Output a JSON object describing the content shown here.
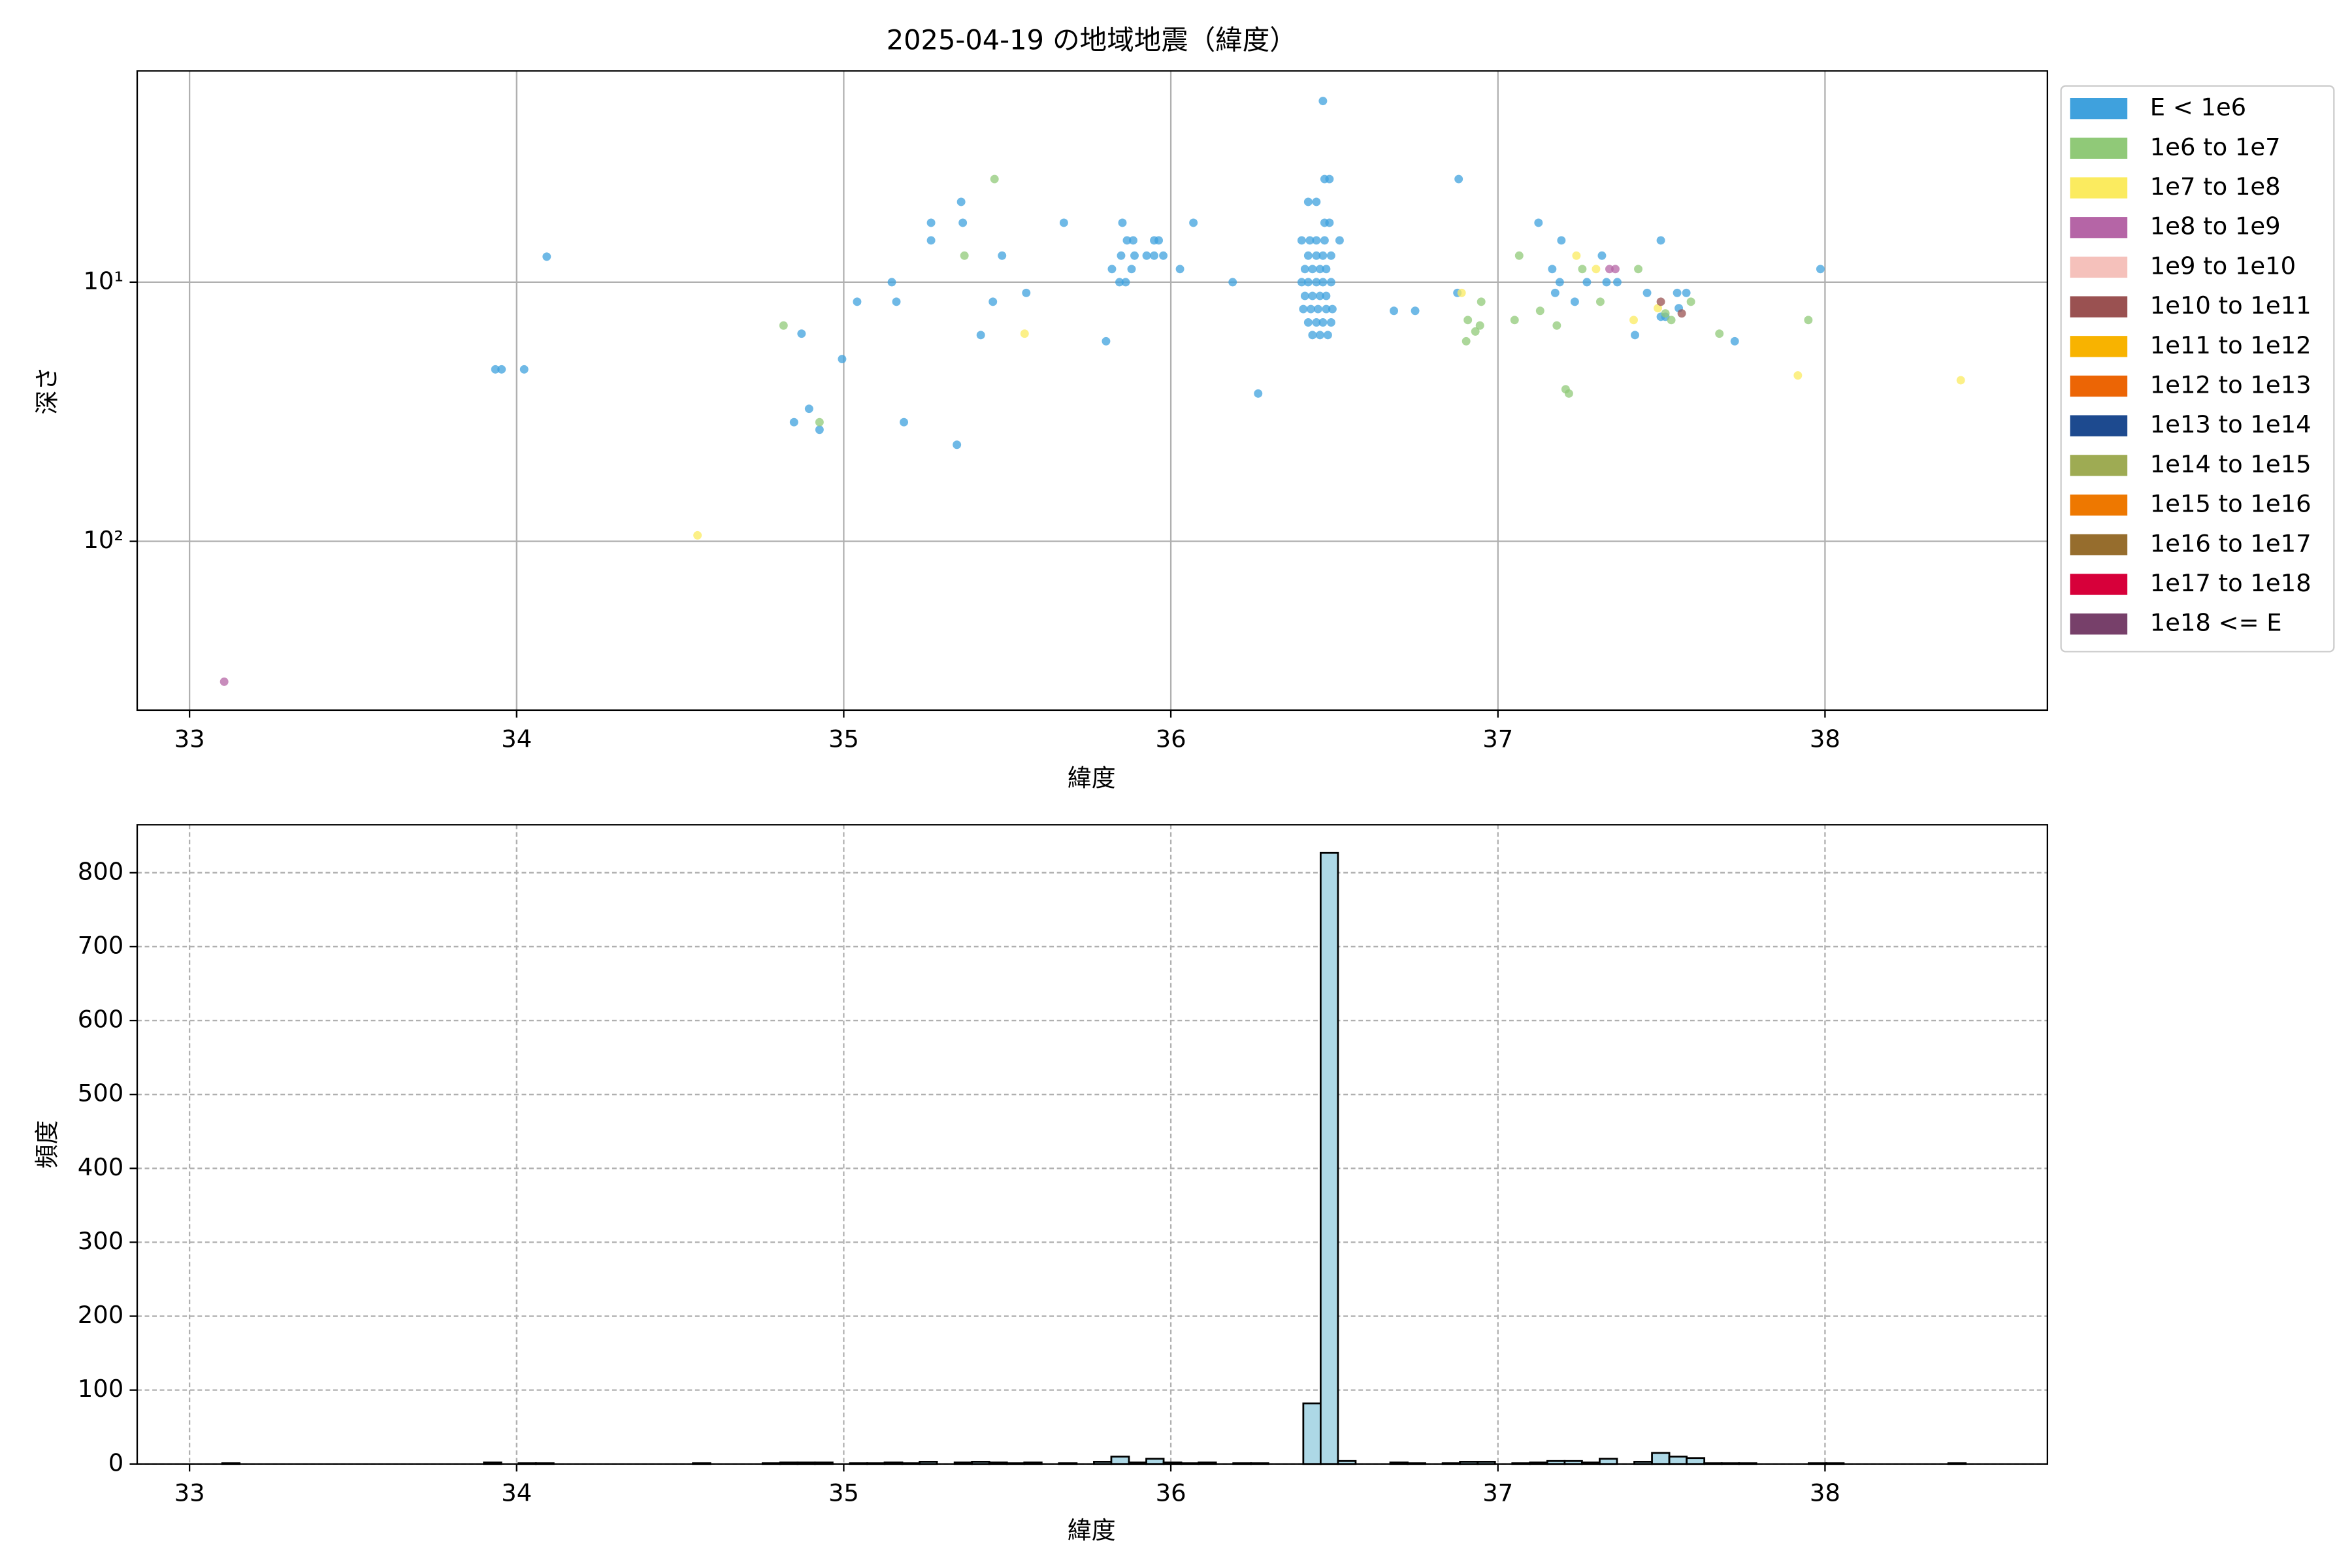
{
  "chart_data": [
    {
      "type": "scatter",
      "title": "2025-04-19 の地域地震（緯度）",
      "xlabel": "緯度",
      "ylabel": "深さ",
      "xlim": [
        32.84,
        38.68
      ],
      "ylim": [
        1.53,
        448
      ],
      "log_y": true,
      "invert_y": true,
      "grid": true,
      "legend": "outside-right",
      "xticks": [
        33,
        34,
        35,
        36,
        37,
        38
      ],
      "yticks": [
        {
          "value": 10,
          "label": "10¹"
        },
        {
          "value": 100,
          "label": "10²"
        }
      ],
      "series": [
        {
          "name": "E < 1e6",
          "color": "#3fa1dd",
          "x": [
            36.465,
            36.47,
            36.485,
            36.42,
            36.445,
            36.47,
            36.485,
            36.4,
            36.425,
            36.445,
            36.47,
            36.516,
            36.42,
            36.445,
            36.465,
            36.49,
            36.41,
            36.433,
            36.456,
            36.475,
            36.4,
            36.42,
            36.445,
            36.465,
            36.49,
            36.41,
            36.433,
            36.456,
            36.475,
            36.405,
            36.428,
            36.45,
            36.475,
            36.494,
            36.42,
            36.445,
            36.465,
            36.49,
            36.433,
            36.456,
            36.48,
            33.935,
            33.954,
            34.023,
            34.092,
            35.267,
            35.267,
            35.359,
            35.364,
            35.484,
            35.558,
            35.456,
            35.419,
            35.147,
            35.161,
            35.041,
            34.871,
            34.995,
            34.894,
            34.848,
            34.926,
            35.184,
            35.346,
            35.673,
            35.852,
            35.866,
            35.885,
            35.88,
            35.82,
            35.843,
            35.862,
            35.848,
            35.802,
            35.889,
            35.926,
            35.949,
            35.977,
            35.949,
            35.963,
            36.028,
            36.069,
            36.189,
            36.267,
            36.682,
            36.747,
            36.88,
            36.876,
            37.124,
            37.194,
            37.166,
            37.189,
            37.175,
            37.235,
            37.272,
            37.318,
            37.332,
            37.365,
            37.456,
            37.498,
            37.419,
            37.498,
            37.512,
            37.548,
            37.576,
            37.553,
            37.724,
            37.986
          ],
          "values": [
            2.0,
            4.0,
            4.0,
            4.9,
            4.9,
            5.9,
            5.9,
            6.9,
            6.9,
            6.9,
            6.9,
            6.9,
            7.9,
            7.9,
            7.9,
            7.9,
            8.9,
            8.9,
            8.9,
            8.9,
            10,
            10,
            10,
            10,
            10,
            11.3,
            11.3,
            11.3,
            11.3,
            12.7,
            12.7,
            12.7,
            12.7,
            12.7,
            14.3,
            14.3,
            14.3,
            14.3,
            16,
            16,
            16,
            21.7,
            21.7,
            21.7,
            7.97,
            5.9,
            6.9,
            4.9,
            5.9,
            7.9,
            11.0,
            11.9,
            16.0,
            10,
            11.9,
            11.9,
            15.8,
            19.8,
            30.8,
            34.7,
            37.1,
            34.7,
            42.4,
            5.9,
            5.9,
            6.9,
            6.9,
            8.9,
            8.9,
            10,
            10,
            7.9,
            16.9,
            7.9,
            7.9,
            7.9,
            7.9,
            6.9,
            6.9,
            8.9,
            5.9,
            10,
            26.9,
            12.9,
            12.9,
            4.0,
            11.0,
            5.9,
            6.9,
            8.9,
            10,
            11.0,
            11.9,
            10,
            7.9,
            10,
            10,
            11.0,
            6.9,
            16.0,
            13.6,
            13.6,
            11.0,
            11.0,
            12.6,
            16.9,
            8.9
          ]
        },
        {
          "name": "1e6 to 1e7",
          "color": "#90c978",
          "x": [
            35.461,
            35.369,
            34.816,
            34.926,
            36.908,
            36.903,
            36.931,
            36.945,
            36.949,
            37.065,
            37.051,
            37.129,
            37.18,
            37.207,
            37.217,
            37.258,
            37.313,
            37.429,
            37.512,
            37.53,
            37.59,
            37.677,
            37.949
          ],
          "values": [
            4.0,
            7.9,
            14.7,
            34.7,
            14.0,
            16.9,
            15.5,
            14.7,
            11.9,
            7.9,
            14.0,
            12.9,
            14.7,
            25.9,
            26.9,
            8.9,
            11.9,
            8.9,
            13.2,
            14.0,
            11.9,
            15.8,
            14.0
          ]
        },
        {
          "name": "1e7 to 1e8",
          "color": "#fbeb5f",
          "x": [
            36.889,
            37.24,
            37.3,
            37.415,
            37.489,
            37.917,
            38.415,
            35.553,
            34.553
          ],
          "values": [
            11.0,
            7.9,
            8.9,
            14.0,
            12.6,
            22.9,
            23.9,
            15.8,
            94.8
          ]
        },
        {
          "name": "1e8 to 1e9",
          "color": "#b565a6",
          "x": [
            33.106,
            37.341,
            37.359
          ],
          "values": [
            348,
            8.9,
            8.9
          ]
        },
        {
          "name": "1e9 to 1e10",
          "color": "#f5c1bb",
          "x": [],
          "values": []
        },
        {
          "name": "1e10 to 1e11",
          "color": "#9a5151",
          "x": [
            37.498,
            37.562
          ],
          "values": [
            11.9,
            13.2
          ]
        },
        {
          "name": "1e11 to 1e12",
          "color": "#f8b300",
          "x": [],
          "values": []
        },
        {
          "name": "1e12 to 1e13",
          "color": "#ec6505",
          "x": [],
          "values": []
        },
        {
          "name": "1e13 to 1e14",
          "color": "#1d4a8f",
          "x": [],
          "values": []
        },
        {
          "name": "1e14 to 1e15",
          "color": "#9eab53",
          "x": [],
          "values": []
        },
        {
          "name": "1e15 to 1e16",
          "color": "#ee7800",
          "x": [],
          "values": []
        },
        {
          "name": "1e16 to 1e17",
          "color": "#966d2d",
          "x": [],
          "values": []
        },
        {
          "name": "1e17 to 1e18",
          "color": "#d7003a",
          "x": [],
          "values": []
        },
        {
          "name": "1e18 <= E",
          "color": "#77406a",
          "x": [],
          "values": []
        }
      ]
    },
    {
      "type": "histogram",
      "xlabel": "緯度",
      "ylabel": "頻度",
      "color": "#add8e6",
      "edge_color": "#000000",
      "xlim": [
        32.84,
        38.68
      ],
      "ylim": [
        0,
        865
      ],
      "grid": true,
      "grid_style": "dashed",
      "xticks": [
        33,
        34,
        35,
        36,
        37,
        38
      ],
      "yticks": [
        0,
        100,
        200,
        300,
        400,
        500,
        600,
        700,
        800
      ],
      "bins": [
        33.1,
        33.153,
        33.207,
        33.26,
        33.313,
        33.367,
        33.42,
        33.473,
        33.526,
        33.58,
        33.633,
        33.686,
        33.74,
        33.793,
        33.846,
        33.9,
        33.953,
        34.006,
        34.059,
        34.113,
        34.166,
        34.219,
        34.273,
        34.326,
        34.379,
        34.433,
        34.486,
        34.539,
        34.592,
        34.646,
        34.699,
        34.752,
        34.806,
        34.859,
        34.912,
        34.966,
        35.019,
        35.072,
        35.125,
        35.179,
        35.232,
        35.285,
        35.339,
        35.392,
        35.445,
        35.499,
        35.552,
        35.605,
        35.658,
        35.712,
        35.765,
        35.818,
        35.872,
        35.925,
        35.978,
        36.032,
        36.085,
        36.138,
        36.191,
        36.245,
        36.298,
        36.351,
        36.405,
        36.458,
        36.511,
        36.565,
        36.618,
        36.671,
        36.724,
        36.778,
        36.831,
        36.884,
        36.938,
        36.991,
        37.044,
        37.098,
        37.151,
        37.204,
        37.257,
        37.311,
        37.364,
        37.417,
        37.471,
        37.524,
        37.577,
        37.631,
        37.684,
        37.737,
        37.79,
        37.844,
        37.897,
        37.95,
        38.004,
        38.057,
        38.11,
        38.164,
        38.217,
        38.27,
        38.323,
        38.377,
        38.43
      ],
      "values": [
        1,
        0,
        0,
        0,
        0,
        0,
        0,
        0,
        0,
        0,
        0,
        0,
        0,
        0,
        0,
        2,
        0,
        1,
        1,
        0,
        0,
        0,
        0,
        0,
        0,
        0,
        0,
        1,
        0,
        0,
        0,
        1,
        2,
        2,
        2,
        0,
        1,
        1,
        2,
        1,
        3,
        0,
        2,
        3,
        2,
        1,
        2,
        0,
        1,
        0,
        3,
        10,
        2,
        7,
        2,
        1,
        2,
        0,
        1,
        1,
        0,
        0,
        82,
        827,
        4,
        0,
        0,
        2,
        1,
        0,
        1,
        3,
        3,
        0,
        1,
        2,
        4,
        4,
        2,
        7,
        0,
        3,
        15,
        10,
        8,
        1,
        1,
        1,
        0,
        0,
        0,
        1,
        1,
        0,
        0,
        0,
        0,
        0,
        0,
        1
      ]
    }
  ]
}
